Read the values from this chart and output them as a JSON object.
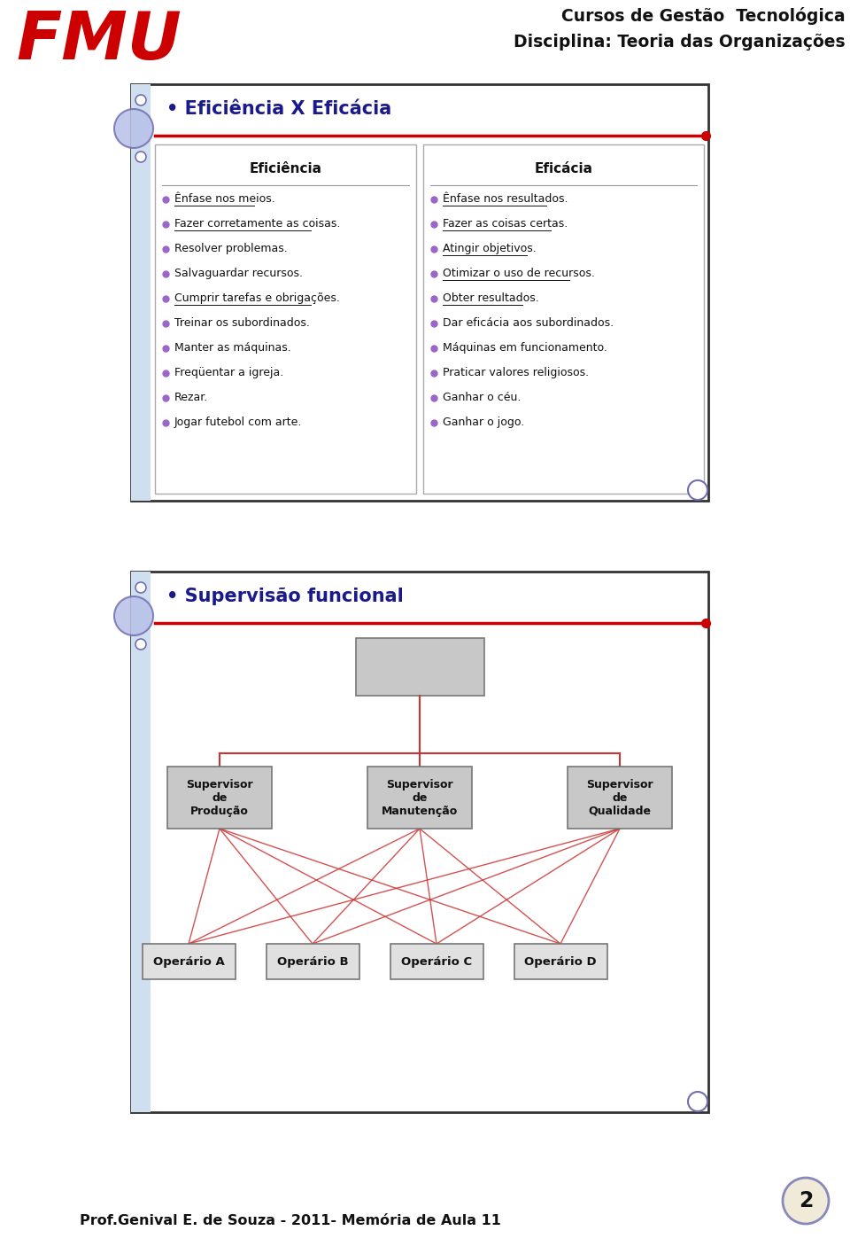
{
  "header_title1": "Cursos de Gestão  Tecnológica",
  "header_title2": "Disciplina: Teoria das Organizações",
  "footer_text": "Prof.Genival E. de Souza - 2011- Memória de Aula 11",
  "page_number": "2",
  "slide1_title": "Eficiência X Eficácia",
  "col1_header": "Eficiência",
  "col2_header": "Eficácia",
  "col1_items": [
    {
      "text": "Ênfase nos meios.",
      "underline": true
    },
    {
      "text": "Fazer corretamente as coisas.",
      "underline": true
    },
    {
      "text": "Resolver problemas.",
      "underline": false
    },
    {
      "text": "Salvaguardar recursos.",
      "underline": false
    },
    {
      "text": "Cumprir tarefas e obrigações.",
      "underline": true
    },
    {
      "text": "Treinar os subordinados.",
      "underline": false
    },
    {
      "text": "Manter as máquinas.",
      "underline": false
    },
    {
      "text": "Freqüentar a igreja.",
      "underline": false
    },
    {
      "text": "Rezar.",
      "underline": false
    },
    {
      "text": "Jogar futebol com arte.",
      "underline": false
    }
  ],
  "col2_items": [
    {
      "text": "Ênfase nos resultados.",
      "underline": true
    },
    {
      "text": "Fazer as coisas certas.",
      "underline": true
    },
    {
      "text": "Atingir objetivos.",
      "underline": true
    },
    {
      "text": "Otimizar o uso de recursos.",
      "underline": true
    },
    {
      "text": "Obter resultados.",
      "underline": true
    },
    {
      "text": "Dar eficácia aos subordinados.",
      "underline": false
    },
    {
      "text": "Máquinas em funcionamento.",
      "underline": false
    },
    {
      "text": "Praticar valores religiosos.",
      "underline": false
    },
    {
      "text": "Ganhar o céu.",
      "underline": false
    },
    {
      "text": "Ganhar o jogo.",
      "underline": false
    }
  ],
  "slide2_title": "Supervisão funcional",
  "supervisors": [
    "Supervisor\nde\nProdução",
    "Supervisor\nde\nManutenção",
    "Supervisor\nde\nQualidade"
  ],
  "workers": [
    "Operário A",
    "Operário B",
    "Operário C",
    "Operário D"
  ],
  "bg_color": "#ffffff",
  "title_color": "#1a1a8c",
  "red_line_color": "#cc0000",
  "bullet_color": "#9966cc",
  "fmu_red": "#cc0000",
  "left_bar_color": "#d0dff0",
  "slide_border": "#555555",
  "col_border": "#aaaaaa",
  "supervisor_box_color": "#c8c8c8",
  "worker_box_color": "#e0e0e0",
  "top_box_color": "#c8c8c8",
  "connect_line_color": "#cc3333",
  "tree_line_color": "#cc3333",
  "circle_fill": "#b8c0e8",
  "circle_edge": "#7070b0",
  "page_circle_fill": "#f0ead8",
  "page_circle_edge": "#8888bb"
}
